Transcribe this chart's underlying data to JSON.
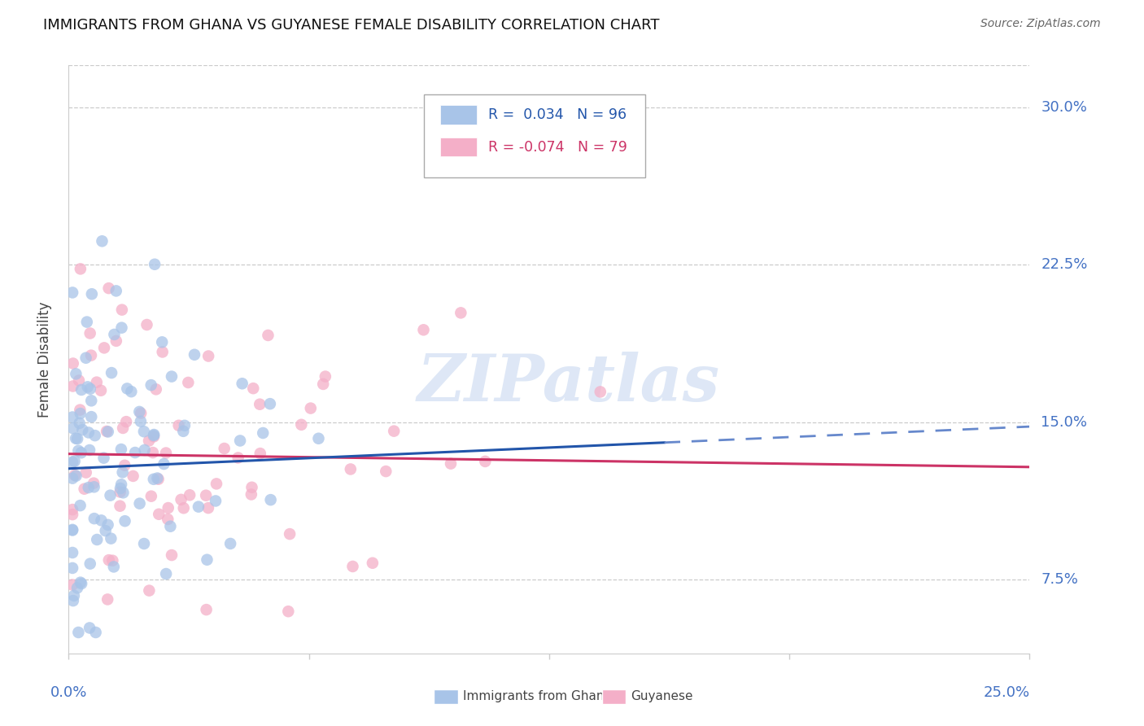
{
  "title": "IMMIGRANTS FROM GHANA VS GUYANESE FEMALE DISABILITY CORRELATION CHART",
  "source": "Source: ZipAtlas.com",
  "ylabel": "Female Disability",
  "ytick_labels": [
    "7.5%",
    "15.0%",
    "22.5%",
    "30.0%"
  ],
  "ytick_values": [
    0.075,
    0.15,
    0.225,
    0.3
  ],
  "xlim": [
    0.0,
    0.25
  ],
  "ylim": [
    0.04,
    0.32
  ],
  "blue_R": 0.034,
  "blue_N": 96,
  "pink_R": -0.074,
  "pink_N": 79,
  "blue_color": "#a8c4e8",
  "pink_color": "#f4afc8",
  "blue_line_color": "#2255aa",
  "pink_line_color": "#cc3366",
  "blue_dash_color": "#6688cc",
  "watermark_text": "ZIPatlas",
  "legend_label_blue": "Immigrants from Ghana",
  "legend_label_pink": "Guyanese",
  "seed": 42
}
